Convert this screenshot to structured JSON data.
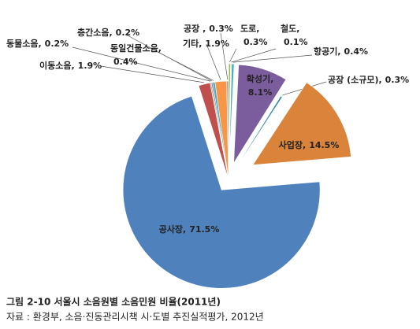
{
  "chart_data": {
    "type": "pie",
    "title": "그림 2-10 서울시 소음원별 소음민원 비율(2011년)",
    "source": "자료 : 환경부, 소음·진동관리시책 시·도별 추진실적평가, 2012년",
    "categories": [
      "도로,",
      "철도,",
      "항공기,",
      "확성기,",
      "공장 (소규모),",
      "사업장,",
      "공사장,",
      "이동소음,",
      "동물소음,",
      "층간소음,",
      "동일건물소음,",
      "기타,",
      "공장 ,"
    ],
    "values": [
      0.3,
      0.1,
      0.4,
      8.1,
      0.3,
      14.5,
      71.5,
      1.9,
      0.2,
      0.2,
      0.4,
      1.9,
      0.3
    ],
    "value_labels": [
      "0.3%",
      "0.1%",
      "0.4%",
      "8.1%",
      "0.3%",
      "14.5%",
      "71.5%",
      "1.9%",
      "0.2%",
      "0.2%",
      "0.4%",
      "1.9%",
      "0.3%"
    ],
    "colors": [
      "#9bbb59",
      "#8064a2",
      "#4bacc6",
      "#7b5c9c",
      "#2e8aa0",
      "#d9833b",
      "#4f81bd",
      "#c0504d",
      "#9bbb59",
      "#8064a2",
      "#4bacc6",
      "#f79646",
      "#a5a5a5"
    ],
    "explode": [
      true,
      true,
      true,
      true,
      false,
      true,
      true,
      false,
      false,
      false,
      false,
      false,
      false
    ]
  }
}
